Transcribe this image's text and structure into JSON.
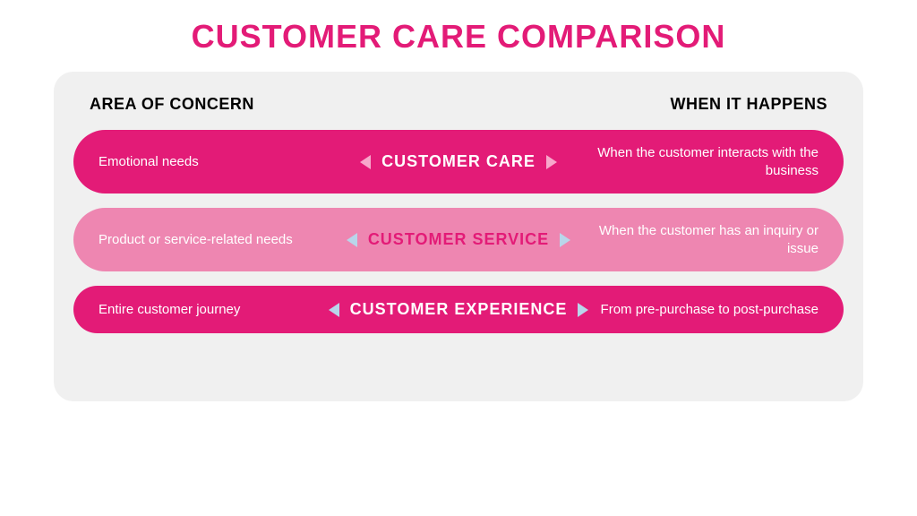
{
  "title": {
    "text": "CUSTOMER CARE COMPARISON",
    "color": "#e31b77",
    "fontsize": 36
  },
  "panel": {
    "background": "#f0f0f0",
    "header_left": "AREA OF CONCERN",
    "header_right": "WHEN IT HAPPENS",
    "header_color": "#000000",
    "header_fontsize": 18
  },
  "rows": [
    {
      "left": "Emotional needs",
      "center": "CUSTOMER CARE",
      "right": "When the customer interacts with the business",
      "bg_color": "#e31b77",
      "text_color": "#ffffff",
      "center_color": "#ffffff",
      "arrow_color": "#f7a8cb",
      "fontsize": 15,
      "center_fontsize": 18
    },
    {
      "left": "Product or service-related needs",
      "center": "CUSTOMER SERVICE",
      "right": "When the customer has an inquiry or issue",
      "bg_color": "#ee86b1",
      "text_color": "#ffffff",
      "center_color": "#e31b77",
      "arrow_color": "#b9d5ea",
      "fontsize": 15,
      "center_fontsize": 18
    },
    {
      "left": "Entire customer journey",
      "center": "CUSTOMER EXPERIENCE",
      "right": "From pre-purchase to post-purchase",
      "bg_color": "#e31b77",
      "text_color": "#ffffff",
      "center_color": "#ffffff",
      "arrow_color": "#b9d5ea",
      "fontsize": 15,
      "center_fontsize": 18
    }
  ]
}
